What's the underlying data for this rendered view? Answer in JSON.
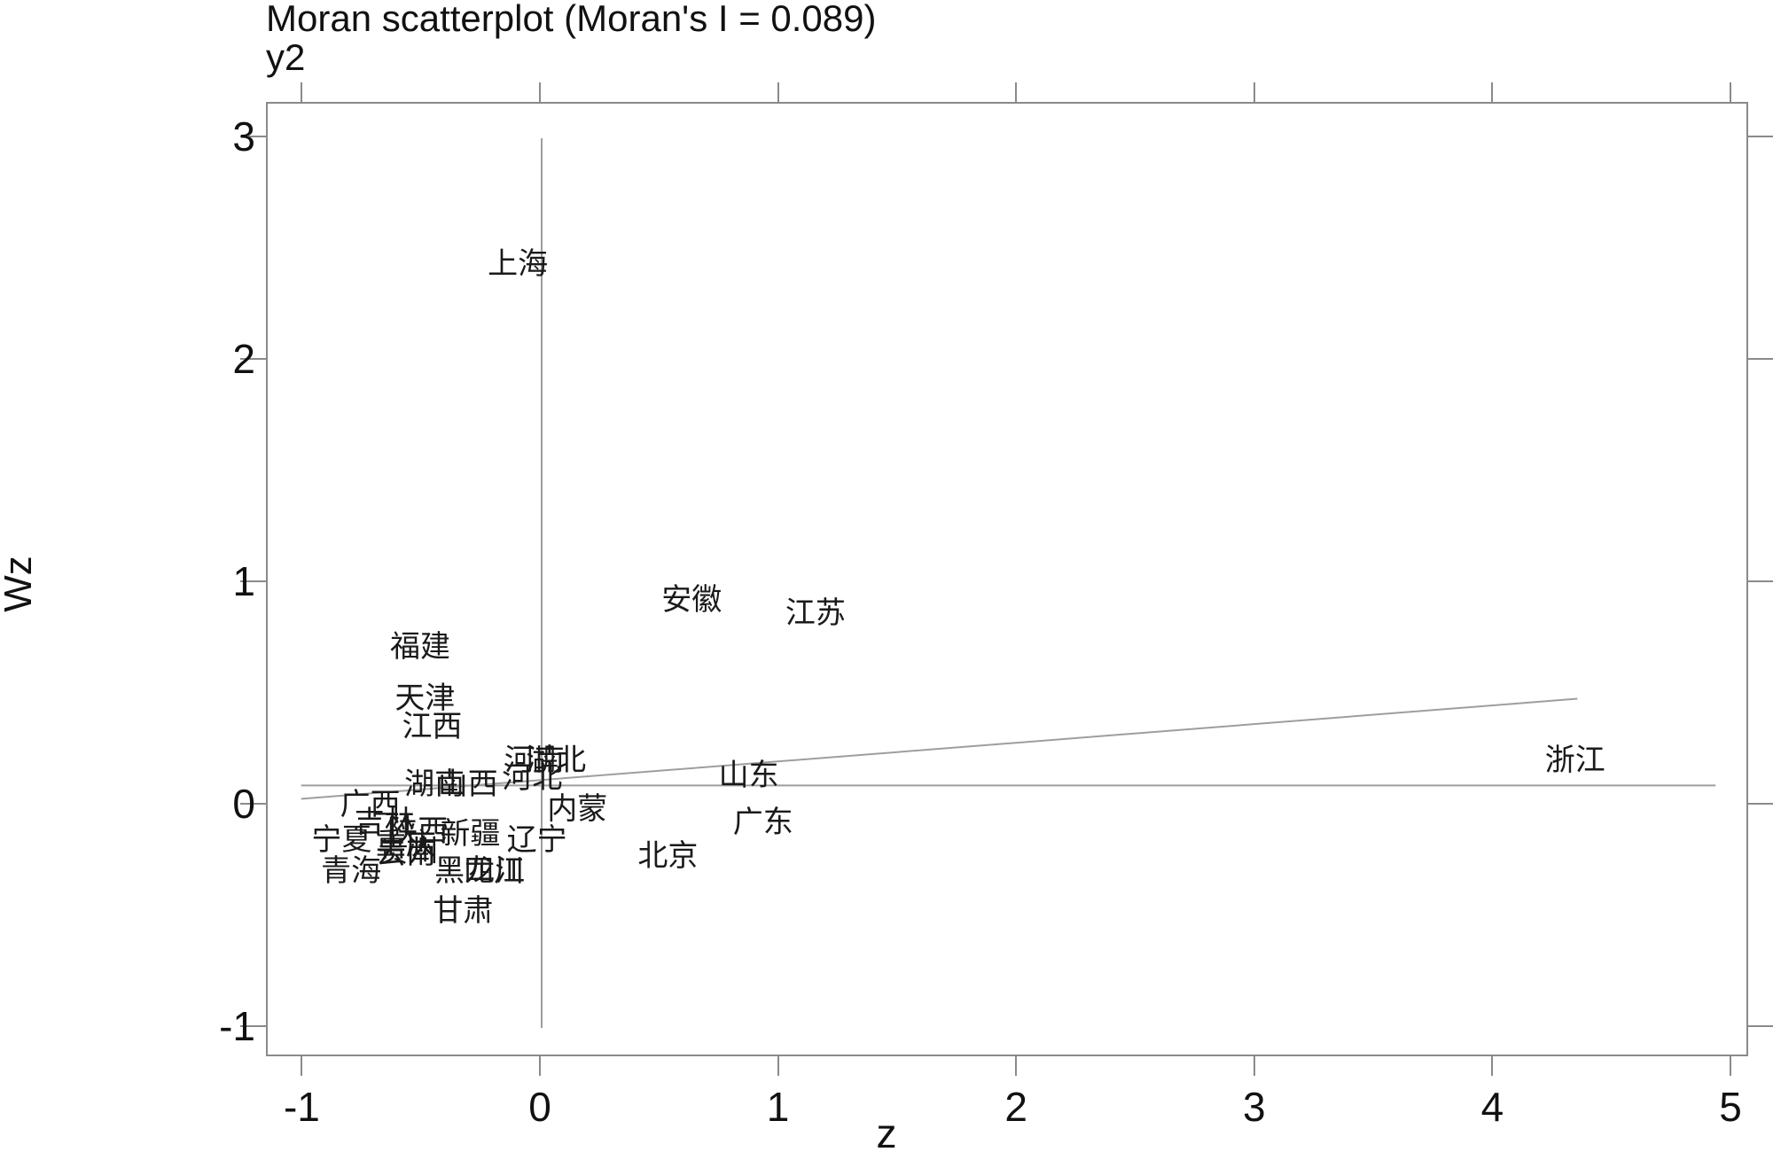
{
  "title": "Moran scatterplot (Moran's I = 0.089)",
  "subtitle": "y2",
  "axes": {
    "x_label": "z",
    "y_label": "Wz",
    "x_ticks": [
      -1,
      0,
      1,
      2,
      3,
      4,
      5
    ],
    "y_ticks": [
      3,
      2,
      1,
      0,
      -1
    ],
    "x_range": [
      -1.15,
      5.07
    ],
    "y_range": [
      -1.14,
      3.16
    ],
    "grid": false
  },
  "colors": {
    "text": "#111111",
    "label_text": "#1a1a1a",
    "frame": "#8a8a8a",
    "reference_line": "#9e9e9e"
  },
  "chart_data": {
    "type": "scatter",
    "title": "Moran scatterplot (Moran's I = 0.089)",
    "subtitle": "y2",
    "xlabel": "z",
    "ylabel": "Wz",
    "moran_i": 0.089,
    "xlim": [
      -1.15,
      5.07
    ],
    "ylim": [
      -1.14,
      3.16
    ],
    "marker": "text-label-only",
    "points": [
      {
        "name": "上海",
        "z": -0.1,
        "wz": 2.43
      },
      {
        "name": "安徽",
        "z": 0.63,
        "wz": 0.92
      },
      {
        "name": "江苏",
        "z": 1.15,
        "wz": 0.86
      },
      {
        "name": "福建",
        "z": -0.51,
        "wz": 0.71
      },
      {
        "name": "天津",
        "z": -0.49,
        "wz": 0.48
      },
      {
        "name": "江西",
        "z": -0.46,
        "wz": 0.35
      },
      {
        "name": "河南",
        "z": -0.03,
        "wz": 0.2
      },
      {
        "name": "湖北",
        "z": 0.06,
        "wz": 0.2
      },
      {
        "name": "河北",
        "z": -0.04,
        "wz": 0.12
      },
      {
        "name": "山东",
        "z": 0.87,
        "wz": 0.13
      },
      {
        "name": "浙江",
        "z": 4.34,
        "wz": 0.2
      },
      {
        "name": "湖南",
        "z": -0.45,
        "wz": 0.09
      },
      {
        "name": "山西",
        "z": -0.31,
        "wz": 0.09
      },
      {
        "name": "广西",
        "z": -0.72,
        "wz": 0.0
      },
      {
        "name": "内蒙",
        "z": 0.15,
        "wz": -0.02
      },
      {
        "name": "吉林",
        "z": -0.66,
        "wz": -0.08
      },
      {
        "name": "陕西",
        "z": -0.52,
        "wz": -0.12
      },
      {
        "name": "新疆",
        "z": -0.3,
        "wz": -0.13
      },
      {
        "name": "辽宁",
        "z": -0.02,
        "wz": -0.16
      },
      {
        "name": "宁夏",
        "z": -0.84,
        "wz": -0.16
      },
      {
        "name": "广东",
        "z": 0.93,
        "wz": -0.08
      },
      {
        "name": "重庆",
        "z": -0.57,
        "wz": -0.18
      },
      {
        "name": "贵州",
        "z": -0.56,
        "wz": -0.21
      },
      {
        "name": "云南",
        "z": -0.57,
        "wz": -0.22
      },
      {
        "name": "北京",
        "z": 0.53,
        "wz": -0.23
      },
      {
        "name": "青海",
        "z": -0.8,
        "wz": -0.3
      },
      {
        "name": "黑龙江",
        "z": -0.26,
        "wz": -0.3
      },
      {
        "name": "四川",
        "z": -0.2,
        "wz": -0.3
      },
      {
        "name": "甘肃",
        "z": -0.33,
        "wz": -0.48
      }
    ],
    "reference_lines": {
      "vertical": {
        "x": 0,
        "y_from": -1.0,
        "y_to": 3.0
      },
      "horizontal": {
        "y": 0.09,
        "x_from": -1.01,
        "x_to": 4.93
      },
      "regression": {
        "x_from": -1.01,
        "y_from": 0.03,
        "x_to": 4.35,
        "y_to": 0.48,
        "slope_label": 0.089
      }
    }
  }
}
